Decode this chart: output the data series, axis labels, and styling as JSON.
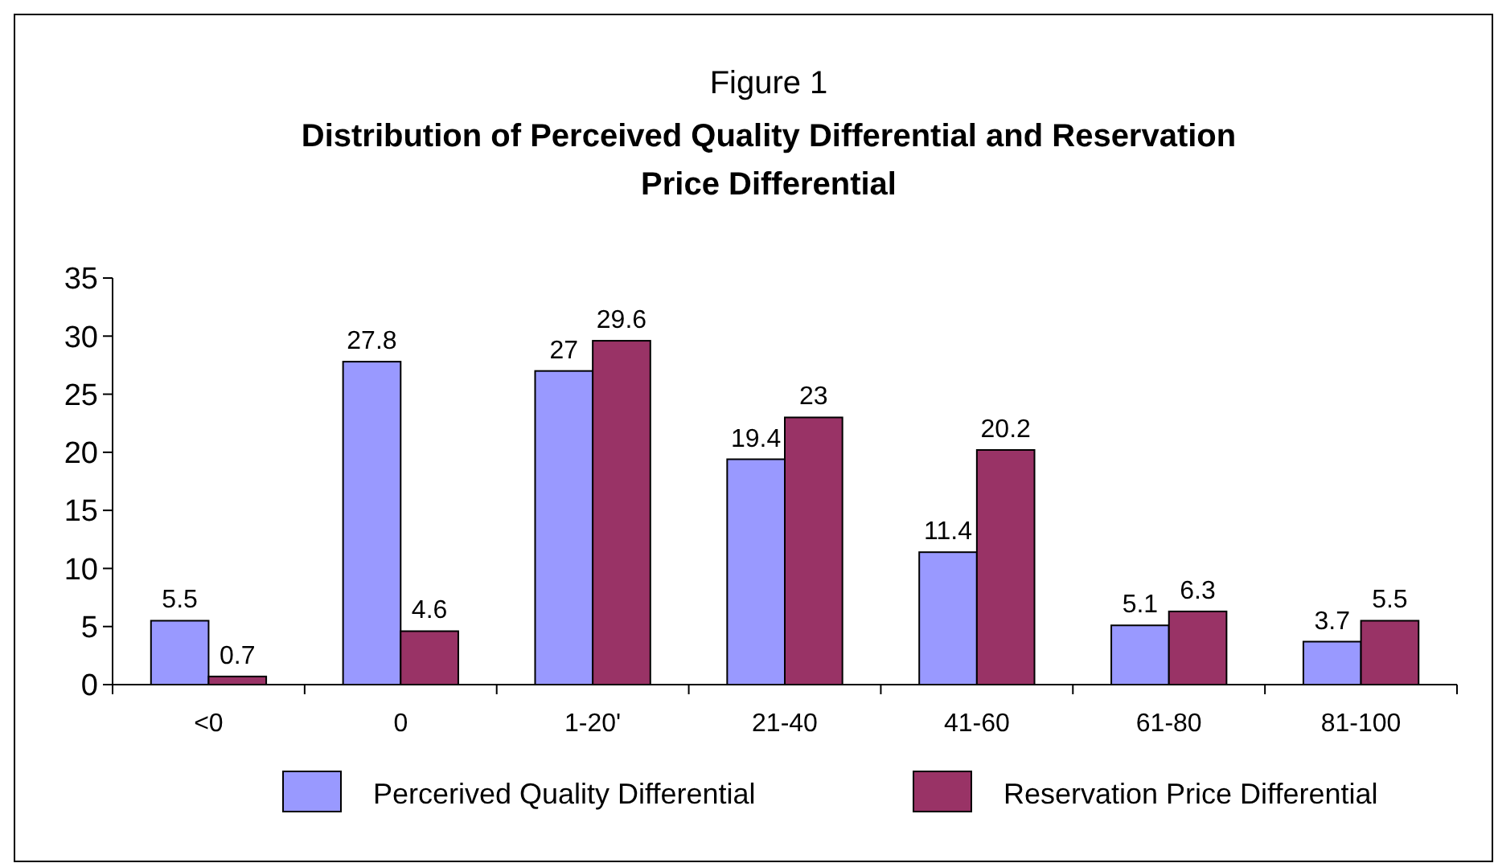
{
  "chart_data": {
    "type": "bar",
    "title": "Figure 1",
    "subtitle": "Distribution of Perceived Quality Differential and Reservation Price Differential",
    "categories": [
      "<0",
      "0",
      "1-20'",
      "21-40",
      "41-60",
      "61-80",
      "81-100"
    ],
    "series": [
      {
        "name": "Percerived Quality Differential",
        "color": "#9999ff",
        "values": [
          5.5,
          27.8,
          27,
          19.4,
          11.4,
          5.1,
          3.7
        ]
      },
      {
        "name": "Reservation Price Differential",
        "color": "#993366",
        "values": [
          0.7,
          4.6,
          29.6,
          23,
          20.2,
          6.3,
          5.5
        ]
      }
    ],
    "ylim": [
      0,
      35
    ],
    "yticks": [
      0,
      5,
      10,
      15,
      20,
      25,
      30,
      35
    ],
    "data_labels": true,
    "legend": "bottom"
  }
}
